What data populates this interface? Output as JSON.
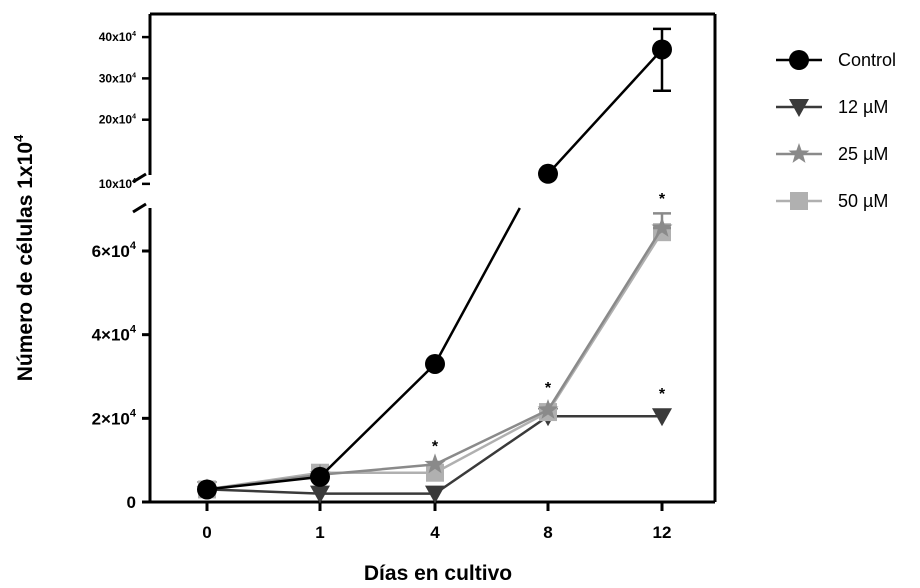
{
  "chart_data": {
    "type": "line",
    "xlabel": "Días en cultivo",
    "ylabel_main": "Número de células 1x10",
    "ylabel_sup": "4",
    "categories": [
      "0",
      "1",
      "4",
      "8",
      "12"
    ],
    "ylim_lower": [
      0,
      70000
    ],
    "ylim_upper": [
      5000,
      42000
    ],
    "y_ticks_lower": [
      {
        "value": 0,
        "mant": "0",
        "exp": ""
      },
      {
        "value": 20000,
        "mant": "2×10",
        "exp": "4"
      },
      {
        "value": 40000,
        "mant": "4×10",
        "exp": "4"
      },
      {
        "value": 60000,
        "mant": "6×10",
        "exp": "4"
      }
    ],
    "y_ticks_upper": [
      {
        "value": 100000,
        "mant": "10x10",
        "exp": "4"
      },
      {
        "value": 200000,
        "mant": "20x10",
        "exp": "4"
      },
      {
        "value": 300000,
        "mant": "30x10",
        "exp": "4"
      },
      {
        "value": 400000,
        "mant": "40x10",
        "exp": "4"
      }
    ],
    "series": [
      {
        "name": "Control",
        "marker": "circle",
        "color": "#000000",
        "values": [
          3000,
          6000,
          33000,
          122000,
          370000
        ],
        "error_upper": [
          0,
          0,
          0,
          0,
          50000
        ],
        "error_lower": [
          0,
          0,
          0,
          0,
          100000
        ]
      },
      {
        "name": "12 µM",
        "marker": "triangle-down",
        "color": "#3a3a3a",
        "values": [
          3000,
          2000,
          2000,
          20500,
          20500
        ],
        "error_upper": [
          0,
          0,
          0,
          0,
          0
        ],
        "error_lower": [
          0,
          0,
          0,
          0,
          0
        ]
      },
      {
        "name": "25 µM",
        "marker": "star",
        "color": "#8a8a8a",
        "values": [
          3000,
          6500,
          9000,
          22000,
          65500
        ],
        "error_upper": [
          0,
          0,
          0,
          0,
          3500
        ],
        "error_lower": [
          0,
          0,
          0,
          0,
          0
        ]
      },
      {
        "name": "50 µM",
        "marker": "square",
        "color": "#b0b0b0",
        "values": [
          3000,
          7000,
          7000,
          21500,
          64500
        ],
        "error_upper": [
          0,
          0,
          0,
          0,
          0
        ],
        "error_lower": [
          0,
          0,
          0,
          0,
          0
        ]
      }
    ],
    "significance_marks": [
      {
        "x": "4",
        "y": 14000,
        "text": "*"
      },
      {
        "x": "8",
        "y": 28000,
        "text": "*"
      },
      {
        "x": "12",
        "y": 26500,
        "text": "*"
      },
      {
        "x": "12",
        "y": 73000,
        "text": "*"
      }
    ],
    "legend_position": "right",
    "y_axis_broken": true
  }
}
